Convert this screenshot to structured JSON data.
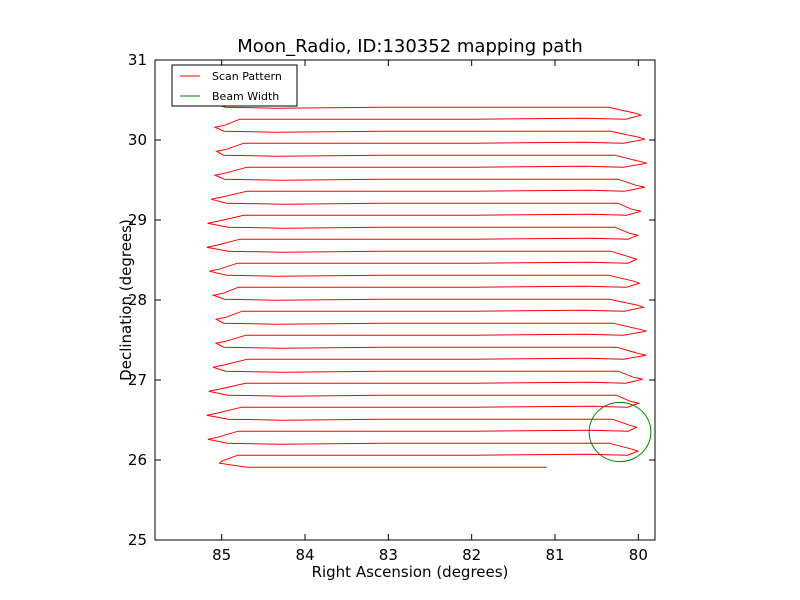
{
  "chart_data": {
    "type": "line",
    "title": "Moon_Radio, ID:130352 mapping path",
    "xlabel": "Right Ascension (degrees)",
    "ylabel": "Declination (degrees)",
    "xlim": [
      85.8,
      79.8
    ],
    "ylim": [
      25,
      31
    ],
    "xticks": [
      85,
      84,
      83,
      82,
      81,
      80
    ],
    "yticks": [
      25,
      26,
      27,
      28,
      29,
      30,
      31
    ],
    "grid": false,
    "legend_position": "top-left",
    "series": [
      {
        "name": "Scan Pattern",
        "color": "#ff0000",
        "type": "raster-scan",
        "ra_range": [
          85.12,
          79.81
        ],
        "dec_start": 25.91,
        "dec_end": 30.42,
        "dec_step": 0.15,
        "end_ra": 81.1
      },
      {
        "name": "Beam Width",
        "color": "#008000",
        "type": "circle",
        "center": [
          80.22,
          26.35
        ],
        "radius": 0.37
      }
    ]
  }
}
